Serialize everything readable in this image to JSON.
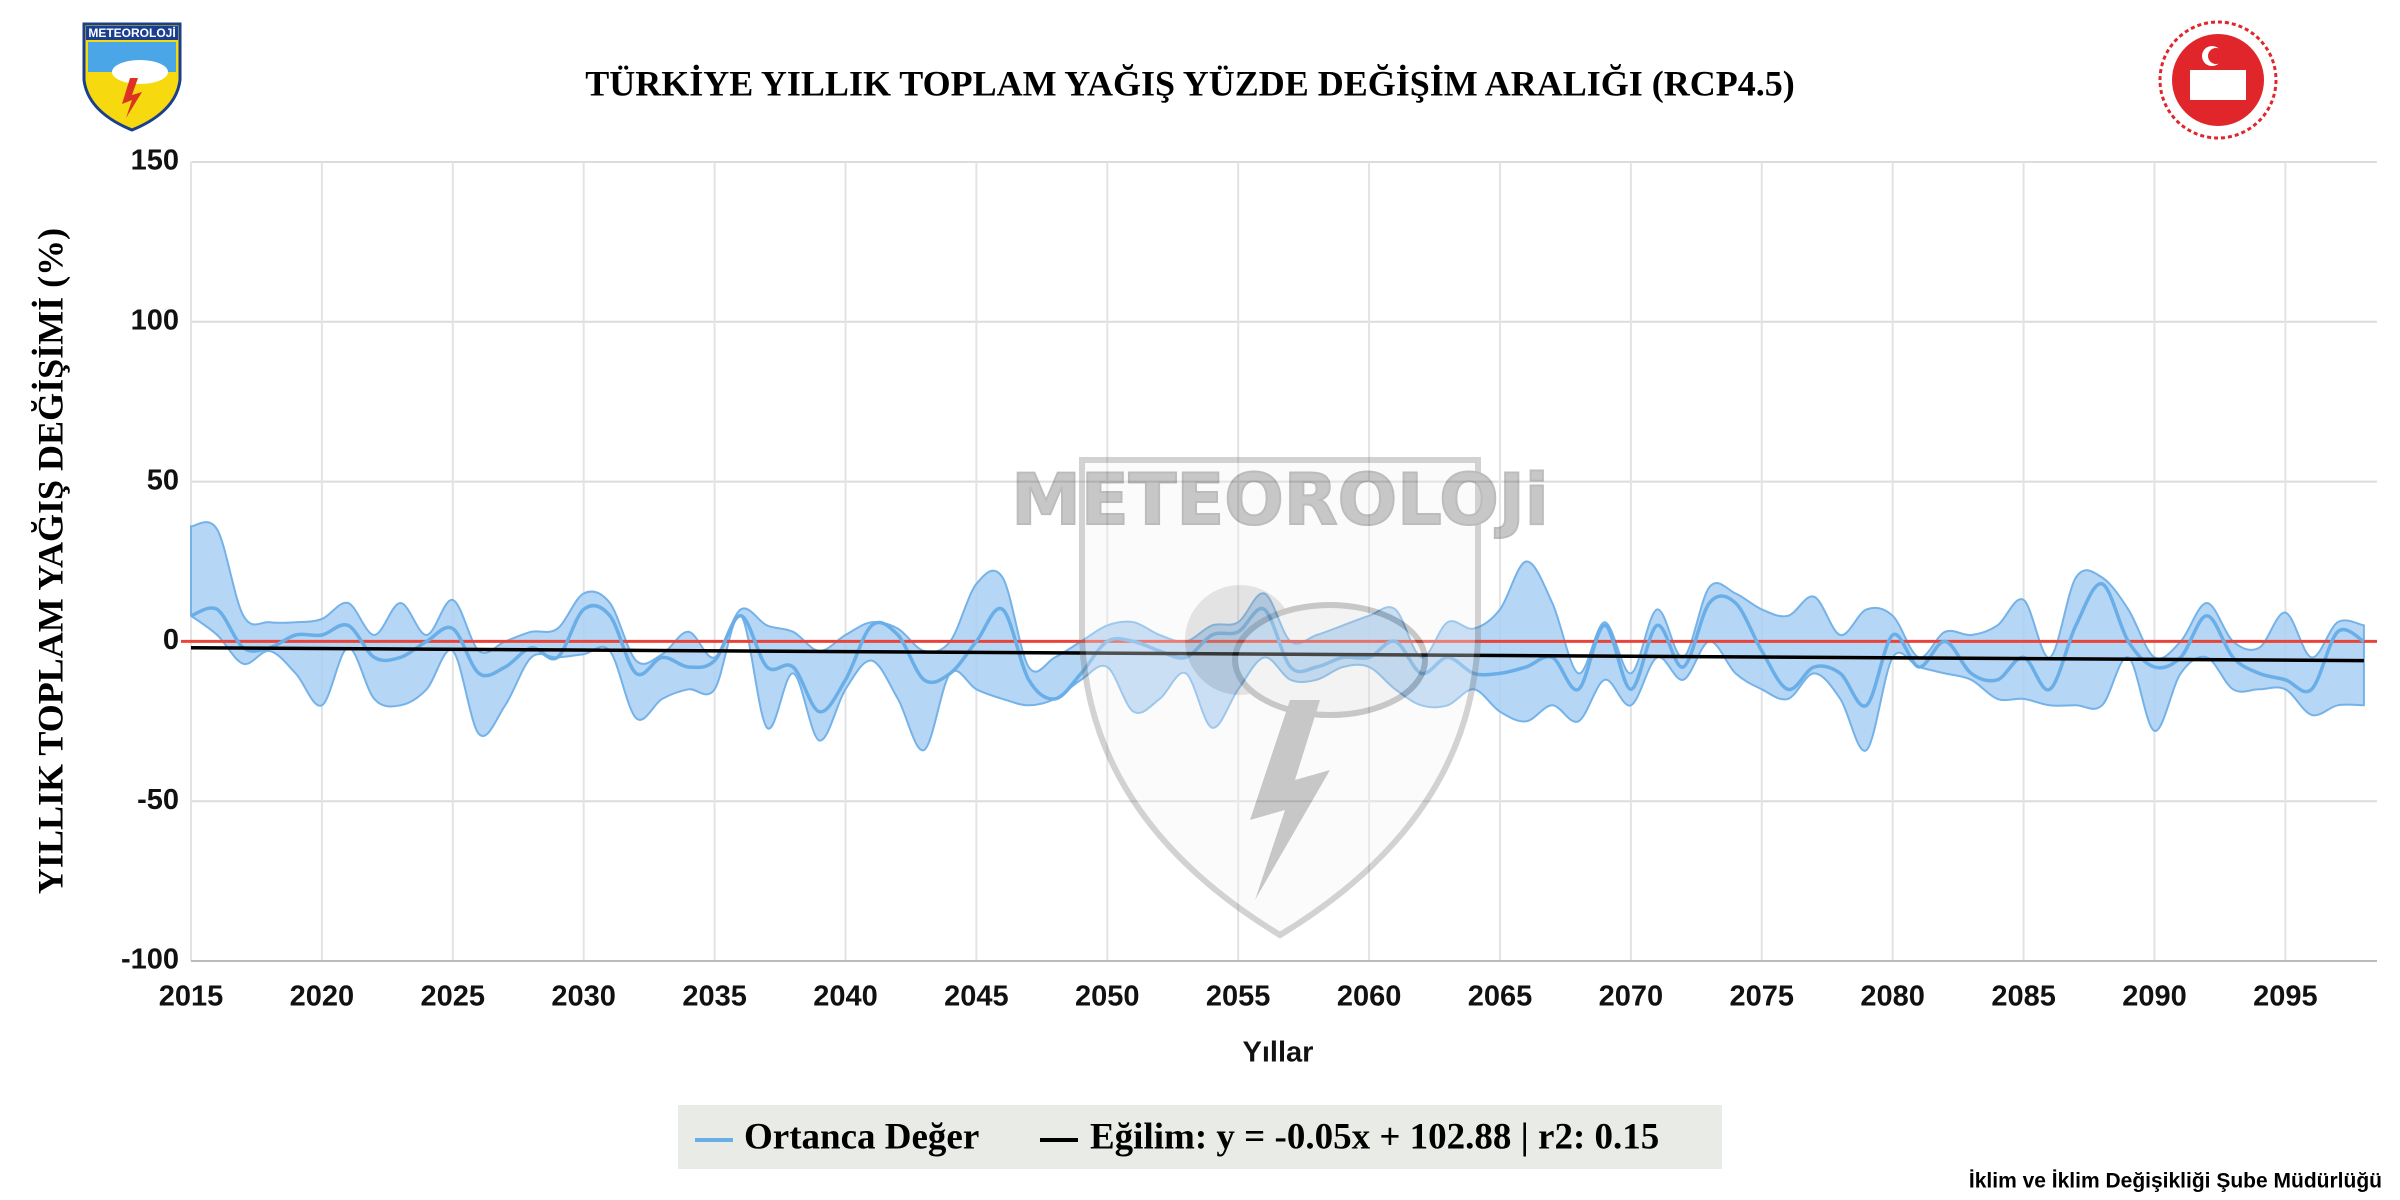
{
  "chart_data": {
    "type": "band-line",
    "title": "TÜRKİYE YILLIK TOPLAM YAĞIŞ YÜZDE DEĞİŞİM ARALIĞI (RCP4.5)",
    "y_label": "YILLIK TOPLAM YAĞIŞ DEĞİŞİMİ (%)",
    "x_label": "Yıllar",
    "footer": "İklim ve İklim Değişikliği Şube Müdürlüğü",
    "logo_text": "METEOROLOJİ",
    "watermark": "METEOROLOJi",
    "x": [
      2015,
      2016,
      2017,
      2018,
      2019,
      2020,
      2021,
      2022,
      2023,
      2024,
      2025,
      2026,
      2027,
      2028,
      2029,
      2030,
      2031,
      2032,
      2033,
      2034,
      2035,
      2036,
      2037,
      2038,
      2039,
      2040,
      2041,
      2042,
      2043,
      2044,
      2045,
      2046,
      2047,
      2048,
      2049,
      2050,
      2051,
      2052,
      2053,
      2054,
      2055,
      2056,
      2057,
      2058,
      2059,
      2060,
      2061,
      2062,
      2063,
      2064,
      2065,
      2066,
      2067,
      2068,
      2069,
      2070,
      2071,
      2072,
      2073,
      2074,
      2075,
      2076,
      2077,
      2078,
      2079,
      2080,
      2081,
      2082,
      2083,
      2084,
      2085,
      2086,
      2087,
      2088,
      2089,
      2090,
      2091,
      2092,
      2093,
      2094,
      2095,
      2096,
      2097,
      2098
    ],
    "range": {
      "color": "#a9cff3",
      "edge_color": "#74b2e8",
      "upper": [
        36,
        35,
        8,
        6,
        6,
        7,
        12,
        2,
        12,
        2,
        13,
        -3,
        0,
        3,
        4,
        15,
        12,
        -6,
        -4,
        3,
        -5,
        10,
        5,
        3,
        -3,
        2,
        6,
        4,
        -3,
        0,
        18,
        20,
        -8,
        -5,
        0,
        5,
        6,
        2,
        0,
        5,
        6,
        15,
        0,
        2,
        5,
        8,
        10,
        -5,
        6,
        4,
        10,
        25,
        12,
        -10,
        6,
        -10,
        10,
        -5,
        17,
        15,
        10,
        8,
        14,
        2,
        10,
        8,
        -5,
        3,
        2,
        5,
        13,
        -5,
        20,
        20,
        10,
        -5,
        0,
        12,
        0,
        -2,
        9,
        -5,
        6,
        5
      ],
      "lower": [
        8,
        2,
        -7,
        -3,
        -10,
        -20,
        -2,
        -18,
        -20,
        -15,
        -3,
        -29,
        -20,
        -5,
        -5,
        -4,
        -3,
        -24,
        -18,
        -15,
        -15,
        8,
        -27,
        -10,
        -31,
        -15,
        -6,
        -18,
        -34,
        -10,
        -15,
        -18,
        -20,
        -18,
        -12,
        -8,
        -22,
        -18,
        -10,
        -27,
        -15,
        -5,
        -12,
        -12,
        -8,
        -8,
        -15,
        -20,
        -20,
        -15,
        -22,
        -25,
        -20,
        -25,
        -12,
        -20,
        -5,
        -12,
        0,
        -10,
        -15,
        -18,
        -10,
        -18,
        -34,
        -5,
        -8,
        -10,
        -12,
        -18,
        -18,
        -20,
        -20,
        -20,
        -5,
        -28,
        -10,
        -5,
        -15,
        -15,
        -15,
        -23,
        -20,
        -20
      ]
    },
    "series": [
      {
        "name": "Ortanca Değer",
        "color": "#6aaee8",
        "values": [
          8,
          10,
          -2,
          -2,
          2,
          2,
          5,
          -5,
          -5,
          0,
          4,
          -10,
          -8,
          -2,
          -5,
          10,
          8,
          -10,
          -5,
          -8,
          -6,
          8,
          -8,
          -8,
          -22,
          -12,
          5,
          2,
          -12,
          -10,
          0,
          10,
          -12,
          -18,
          -10,
          0,
          0,
          -3,
          -5,
          2,
          3,
          10,
          -8,
          -8,
          -5,
          -5,
          0,
          -10,
          -5,
          -10,
          -10,
          -8,
          -5,
          -15,
          5,
          -15,
          5,
          -8,
          12,
          12,
          -3,
          -15,
          -8,
          -10,
          -20,
          2,
          -8,
          0,
          -10,
          -12,
          -5,
          -15,
          5,
          18,
          0,
          -8,
          -5,
          8,
          -5,
          -10,
          -12,
          -15,
          3,
          0
        ]
      }
    ],
    "trend": {
      "name": "Eğilim: y = -0.05x + 102.88 | r2: 0.15",
      "color": "#000000",
      "x": [
        2015,
        2098
      ],
      "values": [
        -2,
        -6
      ]
    },
    "reference_line": {
      "value": 0,
      "color": "#e8443a"
    },
    "xlim": [
      2015,
      2098.5
    ],
    "xticks": [
      2015,
      2020,
      2025,
      2030,
      2035,
      2040,
      2045,
      2050,
      2055,
      2060,
      2065,
      2070,
      2075,
      2080,
      2085,
      2090,
      2095
    ],
    "ylim": [
      -100,
      150
    ],
    "yticks": [
      -100,
      -50,
      0,
      50,
      100,
      150
    ],
    "grid": true
  }
}
